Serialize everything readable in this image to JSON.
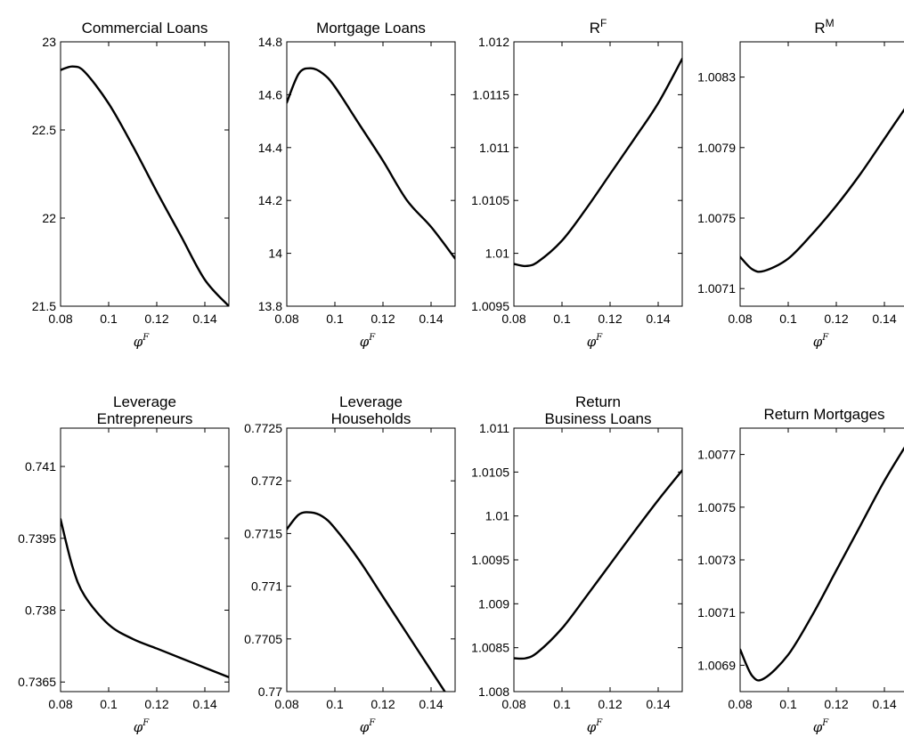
{
  "chart_data": [
    {
      "type": "line",
      "title": "Commercial Loans",
      "xlabel_base": "φ",
      "xlabel_sup": "F",
      "xlim": [
        0.08,
        0.15
      ],
      "ylim": [
        21.5,
        23
      ],
      "xticks": [
        "0.08",
        "0.1",
        "0.12",
        "0.14"
      ],
      "yticks": [
        "21.5",
        "22",
        "22.5",
        "23"
      ],
      "x": [
        0.08,
        0.085,
        0.09,
        0.1,
        0.11,
        0.12,
        0.13,
        0.14,
        0.15
      ],
      "y": [
        22.84,
        22.86,
        22.83,
        22.65,
        22.41,
        22.15,
        21.9,
        21.65,
        21.5
      ]
    },
    {
      "type": "line",
      "title": "Mortgage Loans",
      "xlabel_base": "φ",
      "xlabel_sup": "F",
      "xlim": [
        0.08,
        0.15
      ],
      "ylim": [
        13.8,
        14.8
      ],
      "xticks": [
        "0.08",
        "0.1",
        "0.12",
        "0.14"
      ],
      "yticks": [
        "13.8",
        "14",
        "14.2",
        "14.4",
        "14.6",
        "14.8"
      ],
      "x": [
        0.08,
        0.085,
        0.09,
        0.095,
        0.1,
        0.11,
        0.12,
        0.13,
        0.14,
        0.15
      ],
      "y": [
        14.57,
        14.68,
        14.7,
        14.68,
        14.63,
        14.49,
        14.35,
        14.2,
        14.1,
        13.98
      ]
    },
    {
      "type": "line",
      "title": "R",
      "title_sup": "F",
      "xlabel_base": "φ",
      "xlabel_sup": "F",
      "xlim": [
        0.08,
        0.15
      ],
      "ylim": [
        1.0095,
        1.012
      ],
      "xticks": [
        "0.08",
        "0.1",
        "0.12",
        "0.14"
      ],
      "yticks": [
        "1.0095",
        "1.01",
        "1.0105",
        "1.011",
        "1.0115",
        "1.012"
      ],
      "x": [
        0.08,
        0.085,
        0.09,
        0.1,
        0.11,
        0.12,
        0.13,
        0.14,
        0.15
      ],
      "y": [
        1.0099,
        1.00988,
        1.00992,
        1.01012,
        1.01042,
        1.01075,
        1.01108,
        1.01142,
        1.01184
      ]
    },
    {
      "type": "line",
      "title": "R",
      "title_sup": "M",
      "xlabel_base": "φ",
      "xlabel_sup": "F",
      "xlim": [
        0.08,
        0.15
      ],
      "ylim": [
        1.007,
        1.0085
      ],
      "xticks": [
        "0.08",
        "0.1",
        "0.12",
        "0.14"
      ],
      "yticks": [
        "1.0071",
        "1.0075",
        "1.0079",
        "1.0083"
      ],
      "x": [
        0.08,
        0.085,
        0.09,
        0.1,
        0.11,
        0.12,
        0.13,
        0.14,
        0.15
      ],
      "y": [
        1.00728,
        1.00721,
        1.0072,
        1.00727,
        1.00741,
        1.00757,
        1.00775,
        1.00795,
        1.00815
      ]
    },
    {
      "type": "line",
      "title_lines": [
        "Leverage",
        "Entrepreneurs"
      ],
      "xlabel_base": "φ",
      "xlabel_sup": "F",
      "xlim": [
        0.08,
        0.15
      ],
      "ylim": [
        0.7363,
        0.7418
      ],
      "xticks": [
        "0.08",
        "0.1",
        "0.12",
        "0.14"
      ],
      "yticks": [
        "0.7365",
        "0.738",
        "0.7395",
        "0.741"
      ],
      "x": [
        0.08,
        0.085,
        0.09,
        0.1,
        0.11,
        0.12,
        0.13,
        0.14,
        0.15
      ],
      "y": [
        0.7399,
        0.7389,
        0.7383,
        0.7377,
        0.7374,
        0.7372,
        0.737,
        0.7368,
        0.7366
      ]
    },
    {
      "type": "line",
      "title_lines": [
        "Leverage",
        "Households"
      ],
      "xlabel_base": "φ",
      "xlabel_sup": "F",
      "xlim": [
        0.08,
        0.15
      ],
      "ylim": [
        0.77,
        0.7725
      ],
      "xticks": [
        "0.08",
        "0.1",
        "0.12",
        "0.14"
      ],
      "yticks": [
        "0.77",
        "0.7705",
        "0.771",
        "0.7715",
        "0.772",
        "0.7725"
      ],
      "x": [
        0.08,
        0.085,
        0.09,
        0.095,
        0.1,
        0.11,
        0.12,
        0.13,
        0.14,
        0.15
      ],
      "y": [
        0.77154,
        0.77168,
        0.7717,
        0.77166,
        0.77155,
        0.77125,
        0.7709,
        0.77055,
        0.7702,
        0.76985
      ]
    },
    {
      "type": "line",
      "title_lines": [
        "Return",
        "Business Loans"
      ],
      "xlabel_base": "φ",
      "xlabel_sup": "F",
      "xlim": [
        0.08,
        0.15
      ],
      "ylim": [
        1.008,
        1.011
      ],
      "xticks": [
        "0.08",
        "0.1",
        "0.12",
        "0.14"
      ],
      "yticks": [
        "1.008",
        "1.0085",
        "1.009",
        "1.0095",
        "1.01",
        "1.0105",
        "1.011"
      ],
      "x": [
        0.08,
        0.085,
        0.09,
        0.1,
        0.11,
        0.12,
        0.13,
        0.14,
        0.15
      ],
      "y": [
        1.00838,
        1.00838,
        1.00845,
        1.00872,
        1.00908,
        1.00945,
        1.00982,
        1.01018,
        1.01052
      ]
    },
    {
      "type": "line",
      "title": "Return Mortgages",
      "xlabel_base": "φ",
      "xlabel_sup": "F",
      "xlim": [
        0.08,
        0.15
      ],
      "ylim": [
        1.0068,
        1.0078
      ],
      "xticks": [
        "0.08",
        "0.1",
        "0.12",
        "0.14"
      ],
      "yticks": [
        "1.0069",
        "1.0071",
        "1.0073",
        "1.0075",
        "1.0077"
      ],
      "x": [
        0.08,
        0.085,
        0.09,
        0.1,
        0.11,
        0.12,
        0.13,
        0.14,
        0.15
      ],
      "y": [
        1.00696,
        1.00686,
        1.00685,
        1.00694,
        1.00709,
        1.00726,
        1.00743,
        1.0076,
        1.00775
      ]
    }
  ]
}
